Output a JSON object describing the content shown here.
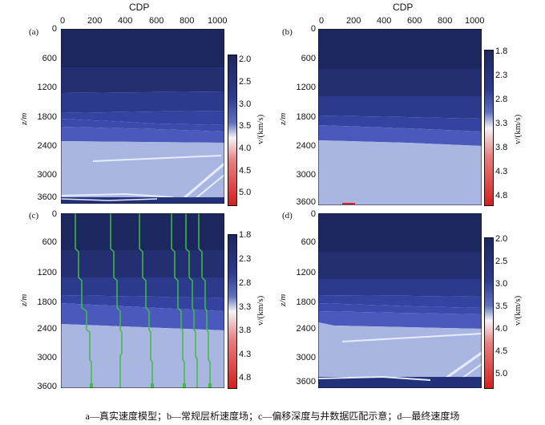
{
  "figure": {
    "cdp_label": "CDP",
    "xticks": [
      "0",
      "200",
      "400",
      "600",
      "800",
      "1000"
    ],
    "depth_axis_label": "z/m",
    "velocity_axis_label": "v/(km/s)",
    "caption": "a—真实速度模型；b—常规层析速度场；c—偏移深度与井数据匹配示意；d—最终速度场",
    "panels": [
      {
        "id": "a",
        "tag": "(a)",
        "yticks": [
          "0",
          "600",
          "1200",
          "1800",
          "2400",
          "3000",
          "3600"
        ],
        "colorbar_ticks": [
          "2.0",
          "2.5",
          "3.0",
          "3.5",
          "4.0",
          "4.5",
          "5.0"
        ],
        "colorbar_range": [
          1.9,
          5.2
        ]
      },
      {
        "id": "b",
        "tag": "(b)",
        "yticks": [
          "0",
          "600",
          "1200",
          "1800",
          "2400",
          "3000",
          "3600"
        ],
        "colorbar_ticks": [
          "1.8",
          "2.3",
          "2.8",
          "3.3",
          "3.8",
          "4.3",
          "4.8"
        ],
        "colorbar_range": [
          1.8,
          4.9
        ]
      },
      {
        "id": "c",
        "tag": "(c)",
        "yticks": [
          "0",
          "600",
          "1200",
          "1800",
          "2400",
          "3000",
          "3600"
        ],
        "colorbar_ticks": [
          "1.8",
          "2.3",
          "2.8",
          "3.3",
          "3.8",
          "4.3",
          "4.8"
        ],
        "colorbar_range": [
          1.8,
          4.9
        ]
      },
      {
        "id": "d",
        "tag": "(d)",
        "yticks": [
          "0",
          "600",
          "1200",
          "1800",
          "2400",
          "3000",
          "3600"
        ],
        "colorbar_ticks": [
          "2.0",
          "2.5",
          "3.0",
          "3.5",
          "4.0",
          "4.5",
          "5.0"
        ],
        "colorbar_range": [
          1.9,
          5.2
        ]
      }
    ],
    "colors": {
      "deep_navy": "#1c2760",
      "navy": "#222f6e",
      "blue_mid": "#3543a0",
      "blue": "#3f4fb2",
      "blue_light": "#5462c0",
      "pale": "#a9b6e2",
      "white_streak": "#e4e9f8",
      "well_green": "#3fbf3f",
      "cbar_red": "#d42020"
    }
  }
}
